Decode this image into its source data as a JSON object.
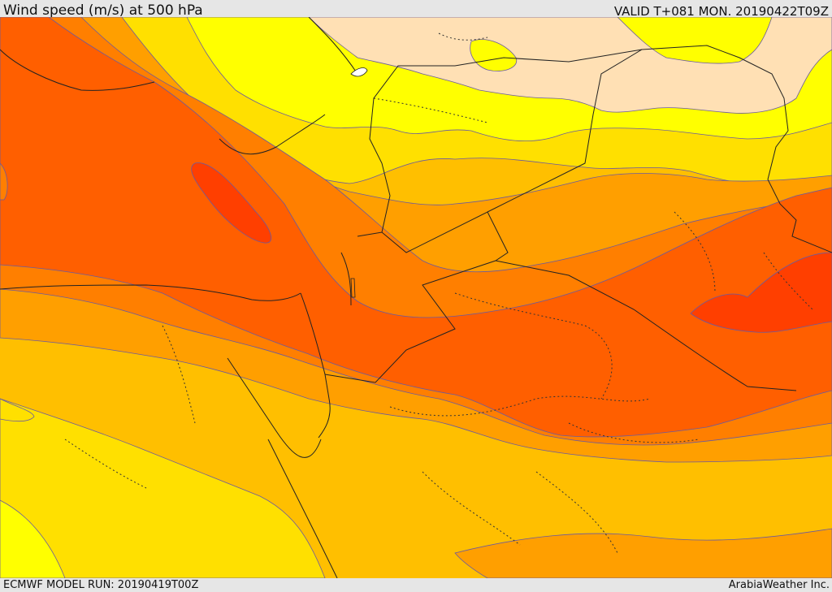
{
  "header": {
    "title": "Wind speed (m/s) at 500 hPa",
    "valid_time": "VALID T+081 MON. 20190422T09Z"
  },
  "footer": {
    "model_run": "ECMWF MODEL RUN: 20190419T00Z",
    "credit": "ArabiaWeather Inc."
  },
  "map": {
    "field": "wind speed",
    "level": "500 hPa",
    "units": "m/s",
    "color_bands": [
      "#ffe0b4",
      "#ffff00",
      "#ffe000",
      "#ffbf00",
      "#ff9f00",
      "#ff7f00",
      "#ff5f00",
      "#ff3f00"
    ],
    "contour_color": "#6a5aa0",
    "border_color": "#222222"
  }
}
